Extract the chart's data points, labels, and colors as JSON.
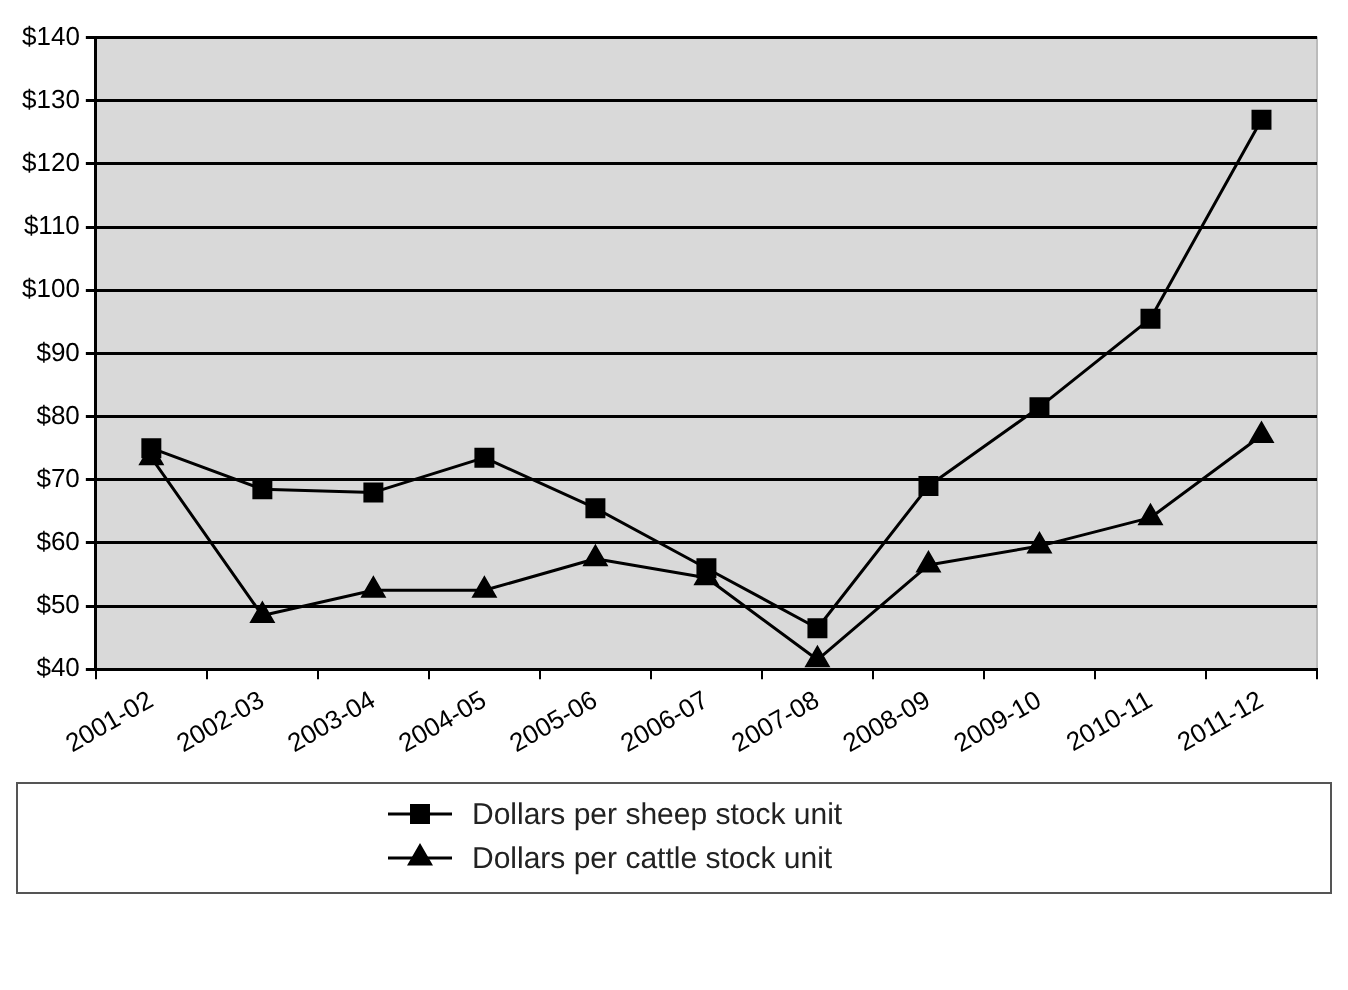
{
  "chart_data": {
    "type": "line",
    "categories": [
      "2001-02",
      "2002-03",
      "2003-04",
      "2004-05",
      "2005-06",
      "2006-07",
      "2007-08",
      "2008-09",
      "2009-10",
      "2010-11",
      "2011-12"
    ],
    "series": [
      {
        "name": "Dollars per sheep stock unit",
        "color": "#000000",
        "marker": "square",
        "values": [
          75,
          68.5,
          68,
          73.5,
          65.5,
          56,
          46.5,
          69,
          81.5,
          95.5,
          127
        ]
      },
      {
        "name": "Dollars per cattle stock unit",
        "color": "#000000",
        "marker": "triangle",
        "values": [
          73.5,
          48.5,
          52.5,
          52.5,
          57.5,
          54.5,
          41.5,
          56.5,
          59.5,
          64,
          77
        ]
      }
    ],
    "ylim": [
      40,
      140
    ],
    "yticks": [
      {
        "value": 40,
        "label": "$40"
      },
      {
        "value": 50,
        "label": "$50"
      },
      {
        "value": 60,
        "label": "$60"
      },
      {
        "value": 70,
        "label": "$70"
      },
      {
        "value": 80,
        "label": "$80"
      },
      {
        "value": 90,
        "label": "$90"
      },
      {
        "value": 100,
        "label": "$100"
      },
      {
        "value": 110,
        "label": "$110"
      },
      {
        "value": 120,
        "label": "$120"
      },
      {
        "value": 130,
        "label": "$130"
      },
      {
        "value": 140,
        "label": "$140"
      }
    ],
    "grid": "y",
    "legend": "bottom",
    "line_style": "solid"
  }
}
